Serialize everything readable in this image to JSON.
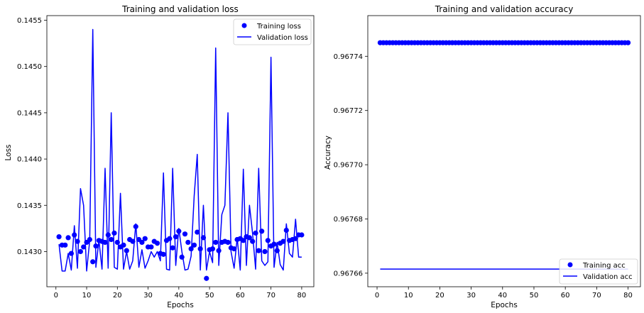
{
  "chart_data": [
    {
      "type": "line",
      "title": "Training and validation loss",
      "xlabel": "Epochs",
      "ylabel": "Loss",
      "xlim": [
        -2.95,
        83.95
      ],
      "ylim": [
        0.14262,
        0.14555
      ],
      "xticks": [
        0,
        10,
        20,
        30,
        40,
        50,
        60,
        70,
        80
      ],
      "yticks": [
        0.143,
        0.1435,
        0.144,
        0.1445,
        0.145,
        0.1455
      ],
      "ytick_labels": [
        "0.1430",
        "0.1435",
        "0.1440",
        "0.1445",
        "0.1450",
        "0.1455"
      ],
      "grid": false,
      "legend_position": "upper right",
      "series": [
        {
          "name": "Training loss",
          "style": "dots",
          "color": "#0000ff",
          "x": [
            1,
            2,
            3,
            4,
            5,
            6,
            7,
            8,
            9,
            10,
            11,
            12,
            13,
            14,
            15,
            16,
            17,
            18,
            19,
            20,
            21,
            22,
            23,
            24,
            25,
            26,
            27,
            28,
            29,
            30,
            31,
            32,
            33,
            34,
            35,
            36,
            37,
            38,
            39,
            40,
            41,
            42,
            43,
            44,
            45,
            46,
            47,
            48,
            49,
            50,
            51,
            52,
            53,
            54,
            55,
            56,
            57,
            58,
            59,
            60,
            61,
            62,
            63,
            64,
            65,
            66,
            67,
            68,
            69,
            70,
            71,
            72,
            73,
            74,
            75,
            76,
            77,
            78,
            79,
            80
          ],
          "values": [
            0.14316,
            0.14307,
            0.14307,
            0.14315,
            0.14298,
            0.14318,
            0.14311,
            0.143,
            0.14305,
            0.1431,
            0.14313,
            0.14289,
            0.14306,
            0.14312,
            0.14311,
            0.1431,
            0.14318,
            0.14313,
            0.1432,
            0.1431,
            0.14305,
            0.14307,
            0.14301,
            0.14313,
            0.14311,
            0.14327,
            0.14313,
            0.1431,
            0.14314,
            0.14305,
            0.14305,
            0.14311,
            0.14309,
            0.14298,
            0.14297,
            0.14312,
            0.14314,
            0.14304,
            0.14316,
            0.14322,
            0.14294,
            0.14319,
            0.1431,
            0.14303,
            0.14307,
            0.14321,
            0.14303,
            0.14315,
            0.14271,
            0.14302,
            0.14303,
            0.1431,
            0.14301,
            0.1431,
            0.14311,
            0.1431,
            0.14304,
            0.14303,
            0.14313,
            0.14314,
            0.14312,
            0.14316,
            0.14315,
            0.14311,
            0.1432,
            0.14301,
            0.14322,
            0.143,
            0.14312,
            0.14306,
            0.14308,
            0.14301,
            0.14309,
            0.14311,
            0.14323,
            0.14312,
            0.14313,
            0.14314,
            0.14318,
            0.14318
          ]
        },
        {
          "name": "Validation loss",
          "style": "line",
          "color": "#0000ff",
          "x": [
            1,
            2,
            3,
            4,
            5,
            6,
            7,
            8,
            9,
            10,
            11,
            12,
            13,
            14,
            15,
            16,
            17,
            18,
            19,
            20,
            21,
            22,
            23,
            24,
            25,
            26,
            27,
            28,
            29,
            30,
            31,
            32,
            33,
            34,
            35,
            36,
            37,
            38,
            39,
            40,
            41,
            42,
            43,
            44,
            45,
            46,
            47,
            48,
            49,
            50,
            51,
            52,
            53,
            54,
            55,
            56,
            57,
            58,
            59,
            60,
            61,
            62,
            63,
            64,
            65,
            66,
            67,
            68,
            69,
            70,
            71,
            72,
            73,
            74,
            75,
            76,
            77,
            78,
            79,
            80
          ],
          "values": [
            0.14308,
            0.14279,
            0.14279,
            0.14298,
            0.1428,
            0.14328,
            0.14282,
            0.14368,
            0.1435,
            0.14279,
            0.14312,
            0.1454,
            0.14283,
            0.14312,
            0.14281,
            0.1439,
            0.14282,
            0.1445,
            0.14283,
            0.14281,
            0.14363,
            0.14281,
            0.143,
            0.14281,
            0.1429,
            0.1433,
            0.14283,
            0.14302,
            0.14282,
            0.1429,
            0.143,
            0.14294,
            0.143,
            0.1429,
            0.14385,
            0.14281,
            0.1428,
            0.1439,
            0.14285,
            0.14325,
            0.143,
            0.1428,
            0.14281,
            0.14295,
            0.1436,
            0.14405,
            0.1428,
            0.1435,
            0.1428,
            0.143,
            0.14288,
            0.1452,
            0.14285,
            0.1434,
            0.1435,
            0.1445,
            0.143,
            0.14282,
            0.14315,
            0.1428,
            0.14389,
            0.14285,
            0.1435,
            0.1432,
            0.14281,
            0.1439,
            0.1429,
            0.14285,
            0.14289,
            0.1451,
            0.14283,
            0.1431,
            0.14286,
            0.1428,
            0.1433,
            0.14298,
            0.14294,
            0.14335,
            0.14294,
            0.14294
          ]
        }
      ]
    },
    {
      "type": "line",
      "title": "Training and validation accuracy",
      "xlabel": "Epochs",
      "ylabel": "Accuracy",
      "xlim": [
        -2.95,
        83.95
      ],
      "ylim": [
        0.967655,
        0.967755
      ],
      "xticks": [
        0,
        10,
        20,
        30,
        40,
        50,
        60,
        70,
        80
      ],
      "yticks": [
        0.96766,
        0.96768,
        0.9677,
        0.96772,
        0.96774
      ],
      "ytick_labels": [
        "0.96766",
        "0.96768",
        "0.96770",
        "0.96772",
        "0.96774"
      ],
      "grid": false,
      "legend_position": "lower right",
      "series": [
        {
          "name": "Training acc",
          "style": "dots",
          "color": "#0000ff",
          "x": [
            1,
            2,
            3,
            4,
            5,
            6,
            7,
            8,
            9,
            10,
            11,
            12,
            13,
            14,
            15,
            16,
            17,
            18,
            19,
            20,
            21,
            22,
            23,
            24,
            25,
            26,
            27,
            28,
            29,
            30,
            31,
            32,
            33,
            34,
            35,
            36,
            37,
            38,
            39,
            40,
            41,
            42,
            43,
            44,
            45,
            46,
            47,
            48,
            49,
            50,
            51,
            52,
            53,
            54,
            55,
            56,
            57,
            58,
            59,
            60,
            61,
            62,
            63,
            64,
            65,
            66,
            67,
            68,
            69,
            70,
            71,
            72,
            73,
            74,
            75,
            76,
            77,
            78,
            79,
            80
          ],
          "constant_value": 0.967745
        },
        {
          "name": "Validation acc",
          "style": "line",
          "color": "#0000ff",
          "x": [
            1,
            80
          ],
          "constant_value": 0.9676615
        }
      ]
    }
  ]
}
